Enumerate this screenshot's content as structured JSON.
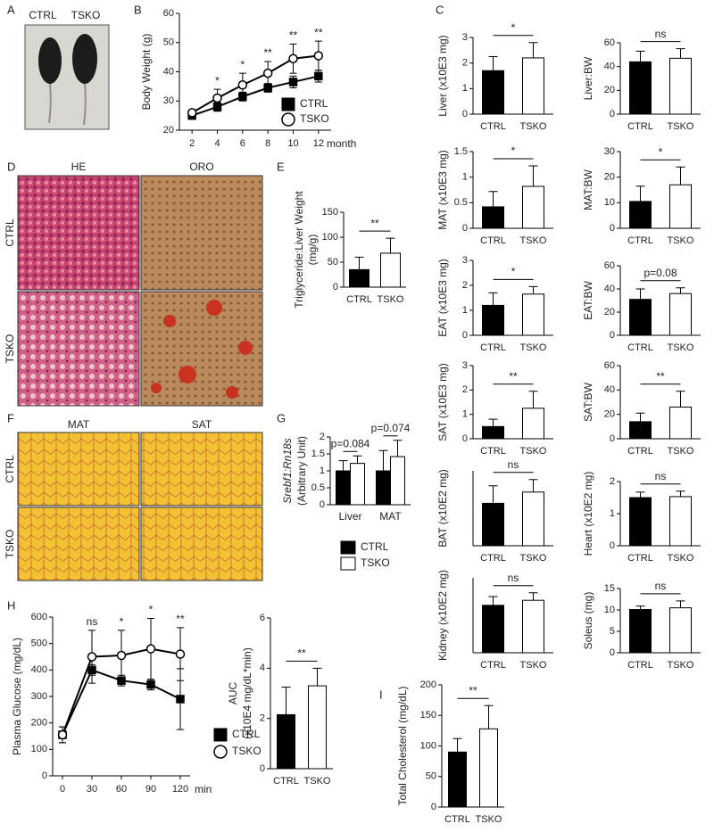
{
  "panel_labels": [
    "A",
    "B",
    "C",
    "D",
    "E",
    "F",
    "G",
    "H",
    "I"
  ],
  "photo": {
    "labels": [
      "CTRL",
      "TSKO"
    ]
  },
  "histology_d": {
    "columns": [
      "HE",
      "ORO"
    ],
    "rows": [
      "CTRL",
      "TSKO"
    ]
  },
  "histology_f": {
    "columns": [
      "MAT",
      "SAT"
    ],
    "rows": [
      "CTRL",
      "TSKO"
    ]
  },
  "chart_data": [
    {
      "type": "line",
      "ylabel": "Body Weight (g)",
      "xlabel": "month",
      "x": [
        2,
        4,
        6,
        8,
        10,
        12
      ],
      "xlim": [
        1,
        13
      ],
      "xticks": [
        2,
        4,
        6,
        8,
        10,
        12
      ],
      "ylim": [
        20,
        60
      ],
      "yticks": [
        20,
        30,
        40,
        50,
        60
      ],
      "series": [
        {
          "name": "CTRL",
          "marker": "square",
          "color": "#000000",
          "fill": "#000000",
          "values": [
            25,
            28,
            31.5,
            34.5,
            36.5,
            38.5
          ],
          "errors": [
            1,
            1.5,
            1.5,
            1.5,
            2,
            2
          ]
        },
        {
          "name": "TSKO",
          "marker": "circle",
          "color": "#000000",
          "fill": "#ffffff",
          "values": [
            26,
            31,
            35.5,
            39.5,
            44.5,
            45.5
          ],
          "errors": [
            1,
            3,
            4,
            4,
            5,
            5
          ]
        }
      ],
      "annotations": [
        null,
        "*",
        "*",
        "**",
        "**",
        "**"
      ]
    },
    {
      "type": "bar",
      "ylabel": [
        "Triglyceride:Liver Weight",
        "(mg/g)"
      ],
      "categories": [
        "CTRL",
        "TSKO"
      ],
      "values": [
        35,
        68
      ],
      "errors": [
        25,
        30
      ],
      "colors": [
        "#000000",
        "#ffffff"
      ],
      "ylim": [
        0,
        150
      ],
      "yticks": [
        0,
        50,
        100,
        150
      ],
      "annotation": "**"
    },
    {
      "type": "grouped_bar",
      "ylabel": [
        "Srebf1:Rn18s",
        "(Arbitrary Unit)"
      ],
      "categories": [
        "Liver",
        "MAT"
      ],
      "series": [
        {
          "name": "CTRL",
          "color": "#000000",
          "values": [
            1.0,
            1.0
          ],
          "errors": [
            0.3,
            0.6
          ]
        },
        {
          "name": "TSKO",
          "color": "#ffffff",
          "values": [
            1.22,
            1.42
          ],
          "errors": [
            0.22,
            0.48
          ]
        }
      ],
      "ylim": [
        0,
        2
      ],
      "yticks": [
        0,
        0.5,
        1,
        1.5,
        2
      ],
      "annotations": [
        "p=0.084",
        "p=0.074"
      ]
    },
    {
      "type": "bar",
      "ylabel": "Liver (x10E3 mg)",
      "categories": [
        "CTRL",
        "TSKO"
      ],
      "values": [
        1.7,
        2.2
      ],
      "errors": [
        0.55,
        0.6
      ],
      "colors": [
        "#000000",
        "#ffffff"
      ],
      "ylim": [
        0,
        3
      ],
      "yticks": [
        0,
        1,
        2,
        3
      ],
      "annotation": "*"
    },
    {
      "type": "bar",
      "ylabel": "Liver:BW",
      "categories": [
        "CTRL",
        "TSKO"
      ],
      "values": [
        44,
        47
      ],
      "errors": [
        9,
        8
      ],
      "colors": [
        "#000000",
        "#ffffff"
      ],
      "ylim": [
        0,
        60
      ],
      "yticks": [
        0,
        20,
        40,
        60
      ],
      "annotation": "ns"
    },
    {
      "type": "bar",
      "ylabel": "MAT (x10E3 mg)",
      "categories": [
        "CTRL",
        "TSKO"
      ],
      "values": [
        0.42,
        0.82
      ],
      "errors": [
        0.3,
        0.4
      ],
      "colors": [
        "#000000",
        "#ffffff"
      ],
      "ylim": [
        0,
        1.5
      ],
      "yticks": [
        0,
        0.5,
        1,
        1.5
      ],
      "annotation": "*"
    },
    {
      "type": "bar",
      "ylabel": "MAT:BW",
      "categories": [
        "CTRL",
        "TSKO"
      ],
      "values": [
        10.5,
        17
      ],
      "errors": [
        6,
        7
      ],
      "colors": [
        "#000000",
        "#ffffff"
      ],
      "ylim": [
        0,
        30
      ],
      "yticks": [
        0,
        10,
        20,
        30
      ],
      "annotation": "*"
    },
    {
      "type": "bar",
      "ylabel": "EAT (x10E3 mg)",
      "categories": [
        "CTRL",
        "TSKO"
      ],
      "values": [
        1.2,
        1.65
      ],
      "errors": [
        0.5,
        0.3
      ],
      "colors": [
        "#000000",
        "#ffffff"
      ],
      "ylim": [
        0,
        3
      ],
      "yticks": [
        0,
        1,
        2,
        3
      ],
      "annotation": "*"
    },
    {
      "type": "bar",
      "ylabel": "EAT:BW",
      "categories": [
        "CTRL",
        "TSKO"
      ],
      "values": [
        31,
        36
      ],
      "errors": [
        9,
        5
      ],
      "colors": [
        "#000000",
        "#ffffff"
      ],
      "ylim": [
        0,
        60
      ],
      "yticks": [
        0,
        20,
        40,
        60
      ],
      "annotation": "p=0.08"
    },
    {
      "type": "bar",
      "ylabel": "SAT (x10E3 mg)",
      "categories": [
        "CTRL",
        "TSKO"
      ],
      "values": [
        0.5,
        1.25
      ],
      "errors": [
        0.3,
        0.7
      ],
      "colors": [
        "#000000",
        "#ffffff"
      ],
      "ylim": [
        0,
        3
      ],
      "yticks": [
        0,
        1,
        2,
        3
      ],
      "annotation": "**"
    },
    {
      "type": "bar",
      "ylabel": "SAT:BW",
      "categories": [
        "CTRL",
        "TSKO"
      ],
      "values": [
        14,
        26
      ],
      "errors": [
        7,
        13
      ],
      "colors": [
        "#000000",
        "#ffffff"
      ],
      "ylim": [
        0,
        60
      ],
      "yticks": [
        0,
        20,
        40,
        60
      ],
      "annotation": "**"
    },
    {
      "type": "bar",
      "ylabel": "BAT (x10E2 mg)",
      "categories": [
        "CTRL",
        "TSKO"
      ],
      "values": [
        1.7,
        2.15
      ],
      "errors": [
        0.7,
        0.5
      ],
      "colors": [
        "#000000",
        "#ffffff"
      ],
      "ylim": [
        0,
        3
      ],
      "annotation": "ns"
    },
    {
      "type": "bar",
      "ylabel": "Heart (x10E2 mg)",
      "categories": [
        "CTRL",
        "TSKO"
      ],
      "values": [
        1.5,
        1.53
      ],
      "errors": [
        0.17,
        0.17
      ],
      "colors": [
        "#000000",
        "#ffffff"
      ],
      "ylim": [
        0,
        2
      ],
      "yticks": [
        0,
        1,
        2
      ],
      "annotation": "ns"
    },
    {
      "type": "bar",
      "ylabel": "Kidney (x10E2 mg)",
      "categories": [
        "CTRL",
        "TSKO"
      ],
      "values": [
        1.9,
        2.1
      ],
      "errors": [
        0.35,
        0.3
      ],
      "colors": [
        "#000000",
        "#ffffff"
      ],
      "ylim": [
        0,
        3
      ],
      "annotation": "ns"
    },
    {
      "type": "bar",
      "ylabel": "Soleus (mg)",
      "categories": [
        "CTRL",
        "TSKO"
      ],
      "values": [
        10.1,
        10.5
      ],
      "errors": [
        0.8,
        1.6
      ],
      "colors": [
        "#000000",
        "#ffffff"
      ],
      "ylim": [
        0,
        15
      ],
      "yticks": [
        0,
        5,
        10,
        15
      ],
      "annotation": "ns"
    },
    {
      "type": "line",
      "ylabel": "Plasma Glucose (mg/dL)",
      "xlabel": "min",
      "x": [
        0,
        30,
        60,
        90,
        120
      ],
      "xlim": [
        -10,
        130
      ],
      "xticks": [
        0,
        30,
        60,
        90,
        120
      ],
      "ylim": [
        0,
        600
      ],
      "yticks": [
        0,
        100,
        200,
        300,
        400,
        500,
        600
      ],
      "series": [
        {
          "name": "CTRL",
          "marker": "square",
          "color": "#000000",
          "fill": "#000000",
          "values": [
            155,
            400,
            360,
            345,
            290
          ],
          "errors": [
            30,
            20,
            20,
            20,
            115
          ]
        },
        {
          "name": "TSKO",
          "marker": "circle",
          "color": "#000000",
          "fill": "#ffffff",
          "values": [
            155,
            450,
            455,
            480,
            460
          ],
          "errors": [
            30,
            100,
            95,
            115,
            100
          ]
        }
      ],
      "annotations": [
        null,
        "ns",
        "*",
        "*",
        "**"
      ]
    },
    {
      "type": "bar",
      "ylabel": [
        "AUC",
        "(x10E4 mg/dL*min)"
      ],
      "categories": [
        "CTRL",
        "TSKO"
      ],
      "values": [
        2.15,
        3.3
      ],
      "errors": [
        1.1,
        0.7
      ],
      "colors": [
        "#000000",
        "#ffffff"
      ],
      "ylim": [
        0,
        6
      ],
      "yticks": [
        0,
        2,
        4,
        6
      ],
      "annotation": "**"
    },
    {
      "type": "bar",
      "ylabel": "Total Cholesterol (mg/dL)",
      "categories": [
        "CTRL",
        "TSKO"
      ],
      "values": [
        90,
        128
      ],
      "errors": [
        22,
        38
      ],
      "colors": [
        "#000000",
        "#ffffff"
      ],
      "ylim": [
        0,
        200
      ],
      "yticks": [
        0,
        50,
        100,
        150,
        200
      ],
      "annotation": "**"
    }
  ]
}
